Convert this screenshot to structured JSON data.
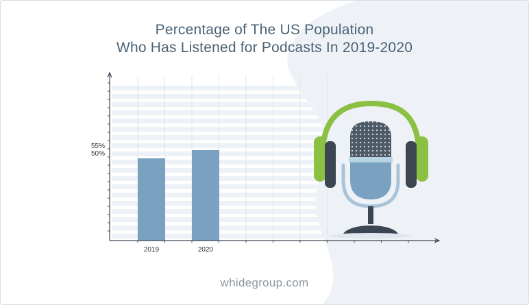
{
  "title_line1": "Percentage of The US Population",
  "title_line2": "Who Has Listened for Podcasts In 2019-2020",
  "footer": "whidegroup.com",
  "chart_data": {
    "type": "bar",
    "categories": [
      "2019",
      "2020"
    ],
    "values": [
      50,
      55
    ],
    "y_tick_labels": [
      "55%",
      "50%"
    ],
    "title": "Percentage of The US Population Who Has Listened for Podcasts In 2019-2020",
    "xlabel": "",
    "ylabel": "",
    "ylim": [
      0,
      100
    ],
    "grid": true,
    "bar_color": "#7ba1c0"
  },
  "illustration": {
    "name": "podcast-microphone-with-headphones",
    "headphone_color": "#8cc043",
    "mic_color": "#7ba1c0"
  }
}
